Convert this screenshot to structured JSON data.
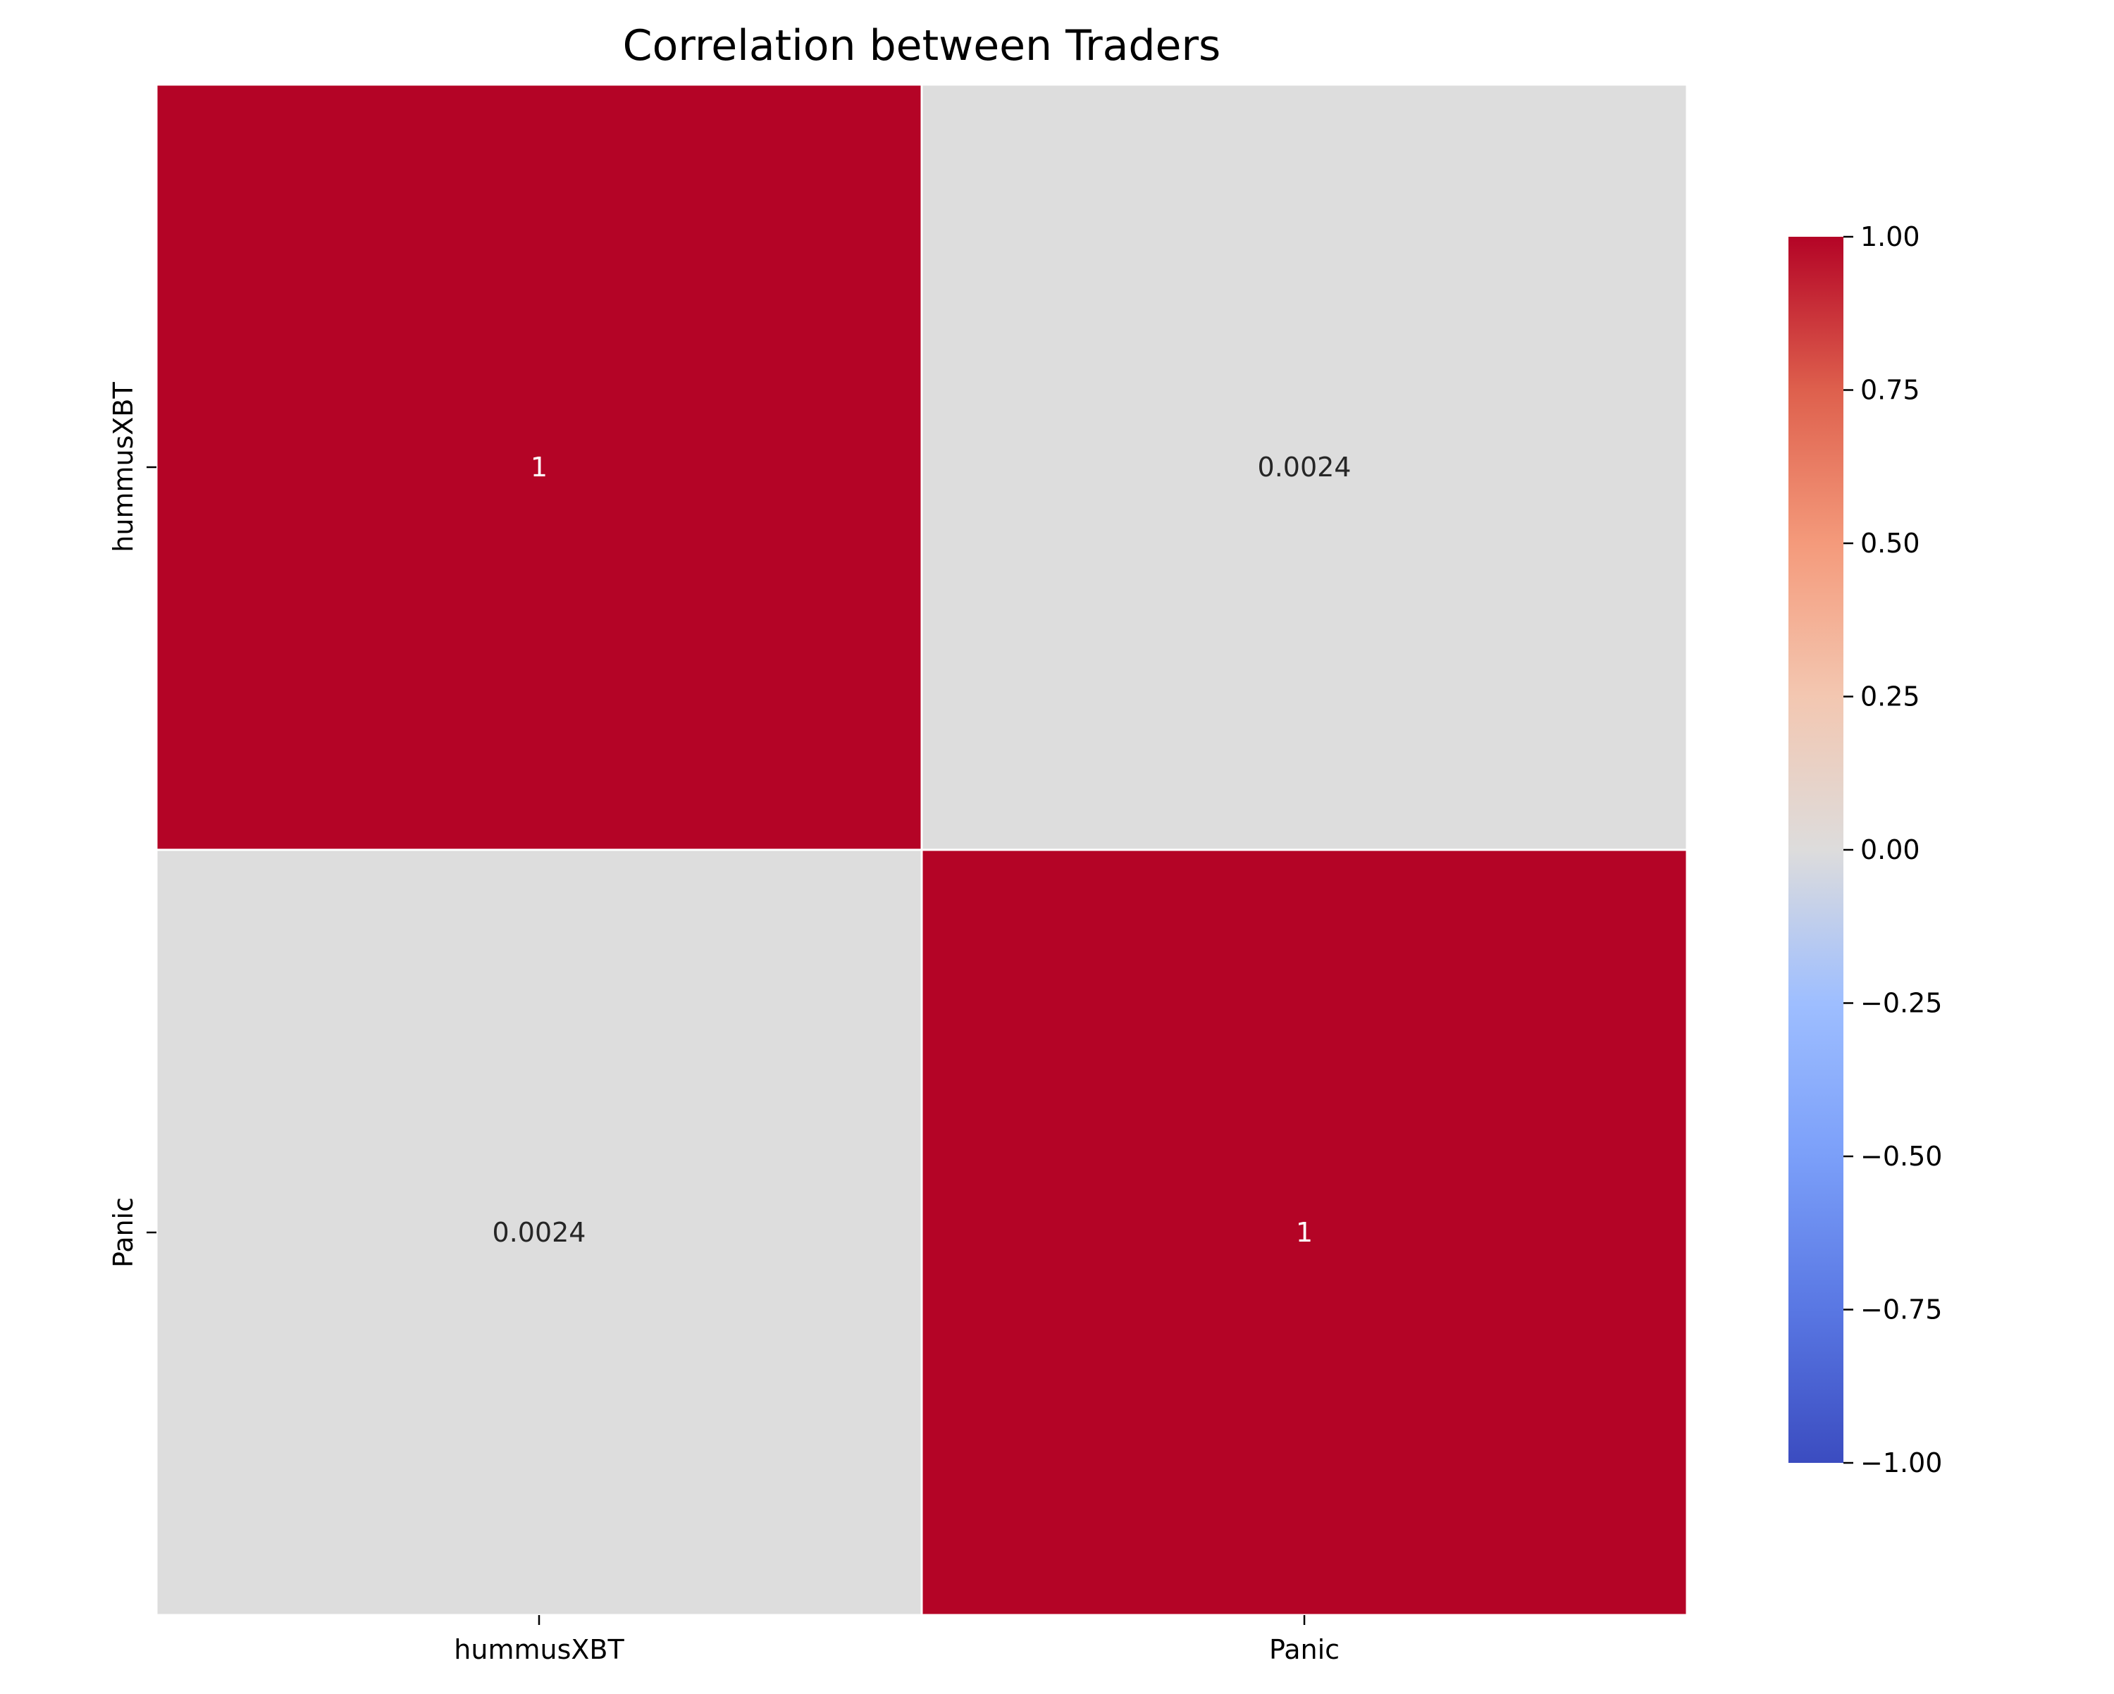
{
  "chart_data": {
    "type": "heatmap",
    "title": "Correlation between Traders",
    "xlabel": "",
    "ylabel": "",
    "x_categories": [
      "hummusXBT",
      "Panic"
    ],
    "y_categories": [
      "hummusXBT",
      "Panic"
    ],
    "matrix": [
      [
        1.0,
        0.0024
      ],
      [
        0.0024,
        1.0
      ]
    ],
    "annotations": [
      [
        "1",
        "0.0024"
      ],
      [
        "0.0024",
        "1"
      ]
    ],
    "colormap": "coolwarm",
    "vmin": -1.0,
    "vmax": 1.0,
    "colorbar": {
      "ticks": [
        1.0,
        0.75,
        0.5,
        0.25,
        0.0,
        -0.25,
        -0.5,
        -0.75,
        -1.0
      ],
      "tick_labels": [
        "1.00",
        "0.75",
        "0.50",
        "0.25",
        "0.00",
        "−0.25",
        "−0.50",
        "−0.75",
        "−1.00"
      ]
    },
    "grid": true,
    "colors": {
      "max": "#b40426",
      "mid": "#dddddd",
      "min": "#3b4cc0",
      "cell_border": "#ffffff",
      "annotation_on_dark": "#ffffff",
      "annotation_on_light": "#262626",
      "text": "#000000"
    }
  }
}
